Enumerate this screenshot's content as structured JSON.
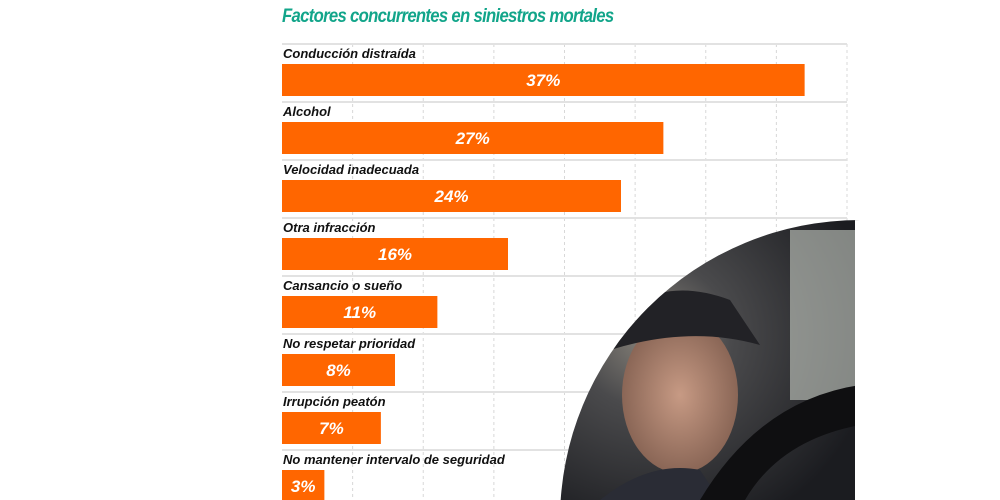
{
  "chart_data": {
    "type": "bar",
    "orientation": "horizontal",
    "title": "Factores concurrentes en  siniestros mortales",
    "categories": [
      "Conducción distraída",
      "Alcohol",
      "Velocidad inadecuada",
      "Otra infracción",
      "Cansancio o sueño",
      "No respetar prioridad",
      "Irrupción peatón",
      "No mantener intervalo de seguridad"
    ],
    "values": [
      37,
      27,
      24,
      16,
      11,
      8,
      7,
      3
    ],
    "data_labels": [
      "37%",
      "27%",
      "24%",
      "16%",
      "11%",
      "8%",
      "7%",
      "3%"
    ],
    "xlim": [
      0,
      40
    ],
    "grid": true,
    "colors": {
      "bar": "#ff6600",
      "title": "#12a58a",
      "grid": "#d8d8d8"
    }
  }
}
